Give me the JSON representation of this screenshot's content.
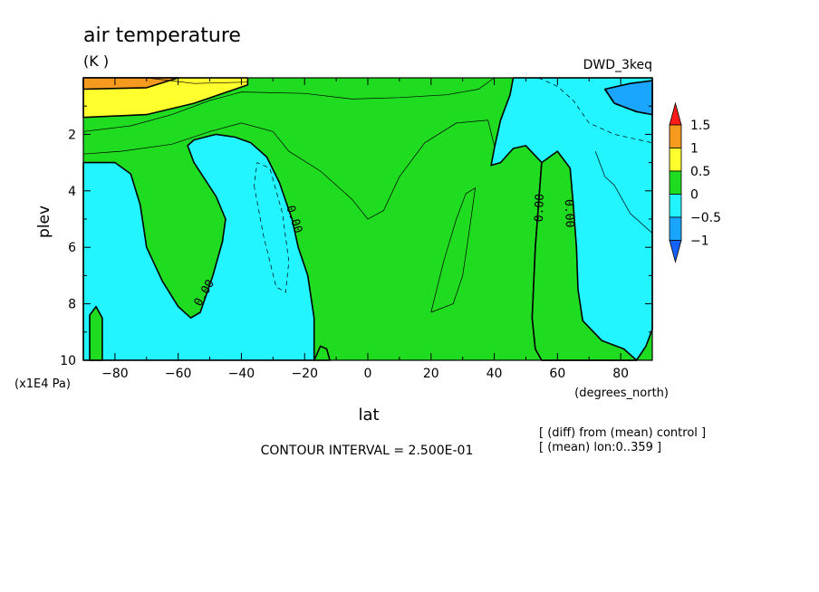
{
  "chart_data": {
    "type": "heatmap",
    "title": "air temperature",
    "units": "(K )",
    "dataset": "DWD_3keq",
    "xlabel": "lat",
    "xunits": "(degrees_north)",
    "ylabel": "plev",
    "yunits": "(x1E4 Pa)",
    "xlim": [
      -90,
      90
    ],
    "ylim": [
      10,
      0
    ],
    "x_ticks": [
      -80,
      -60,
      -40,
      -20,
      0,
      20,
      40,
      60,
      80
    ],
    "y_ticks": [
      2,
      4,
      6,
      8,
      10
    ],
    "contour_interval_text": "CONTOUR INTERVAL = 2.500E-01",
    "notes": [
      "[ (diff) from (mean) control ]",
      "[ (mean) lon:0..359 ]"
    ],
    "contour_label": "0.00",
    "colorbar": {
      "ticks": [
        "1.5",
        "1",
        "0.5",
        "0",
        "-0.5",
        "-1"
      ],
      "bands": [
        {
          "range": "> 1.5",
          "color": "#ff1a1a"
        },
        {
          "range": "1 to 1.5",
          "color": "#f59a1e"
        },
        {
          "range": "0.5 to 1",
          "color": "#ffff2e"
        },
        {
          "range": "0 to 0.5",
          "color": "#20dc20"
        },
        {
          "range": "-0.5 to 0",
          "color": "#22f5ff"
        },
        {
          "range": "-1 to -0.5",
          "color": "#1aa6ff"
        },
        {
          "range": "< -1",
          "color": "#1462ff"
        }
      ]
    },
    "regions": [
      {
        "level": "0.5 to 1",
        "polygon": [
          [
            -90,
            0
          ],
          [
            -38,
            0
          ],
          [
            -38,
            0.25
          ],
          [
            -55,
            0.9
          ],
          [
            -70,
            1.3
          ],
          [
            -90,
            1.4
          ]
        ]
      },
      {
        "level": "1 to 1.5",
        "polygon": [
          [
            -90,
            0
          ],
          [
            -60,
            0
          ],
          [
            -70,
            0.35
          ],
          [
            -90,
            0.4
          ]
        ]
      },
      {
        "level": "-0.5 to 0",
        "polygon": [
          [
            -90,
            3.0
          ],
          [
            -80,
            3.0
          ],
          [
            -75,
            3.4
          ],
          [
            -72,
            4.5
          ],
          [
            -70,
            6.0
          ],
          [
            -65,
            7.2
          ],
          [
            -60,
            8.1
          ],
          [
            -56,
            8.5
          ],
          [
            -53,
            8.3
          ],
          [
            -49,
            7.0
          ],
          [
            -46,
            5.8
          ],
          [
            -45,
            5.0
          ],
          [
            -48,
            4.2
          ],
          [
            -55,
            3.0
          ],
          [
            -57,
            2.4
          ],
          [
            -55,
            2.2
          ],
          [
            -48,
            2.0
          ],
          [
            -42,
            2.1
          ],
          [
            -37,
            2.3
          ],
          [
            -32,
            2.8
          ],
          [
            -28,
            3.7
          ],
          [
            -24,
            5.0
          ],
          [
            -22,
            6.0
          ],
          [
            -19,
            7.0
          ],
          [
            -17,
            8.5
          ],
          [
            -17,
            10
          ],
          [
            -90,
            10
          ]
        ]
      },
      {
        "level": "0 to 0.5",
        "polygon": [
          [
            -88,
            10
          ],
          [
            -88,
            8.4
          ],
          [
            -86,
            8.1
          ],
          [
            -84,
            8.5
          ],
          [
            -84,
            10
          ]
        ]
      },
      {
        "level": "0 to 0.5",
        "polygon": [
          [
            -17,
            10
          ],
          [
            -15,
            9.5
          ],
          [
            -13,
            9.6
          ],
          [
            -12,
            10
          ]
        ]
      },
      {
        "level": "-0.5 to 0",
        "polygon": [
          [
            46,
            0
          ],
          [
            90,
            0
          ],
          [
            90,
            8.9
          ],
          [
            88,
            9.5
          ],
          [
            85,
            10
          ],
          [
            55,
            10
          ],
          [
            53,
            9.6
          ],
          [
            52,
            8.5
          ],
          [
            53,
            6
          ],
          [
            54,
            4.5
          ],
          [
            55,
            3.0
          ],
          [
            50,
            2.4
          ],
          [
            46,
            2.5
          ],
          [
            42,
            3.0
          ],
          [
            39,
            3.1
          ],
          [
            40,
            2.5
          ],
          [
            42,
            1.5
          ],
          [
            45,
            0.6
          ]
        ]
      },
      {
        "level": "0 to 0.5",
        "polygon": [
          [
            55,
            3.0
          ],
          [
            60,
            2.6
          ],
          [
            64,
            3.2
          ],
          [
            65,
            4.5
          ],
          [
            66,
            6.0
          ],
          [
            66.5,
            7.5
          ],
          [
            68,
            8.6
          ],
          [
            74,
            9.3
          ],
          [
            81,
            9.6
          ],
          [
            85,
            10
          ],
          [
            55,
            10
          ],
          [
            53,
            9.6
          ],
          [
            52,
            8.5
          ],
          [
            53,
            6
          ],
          [
            54,
            4.5
          ]
        ]
      },
      {
        "level": "-1 to -0.5",
        "polygon": [
          [
            75,
            0.4
          ],
          [
            83,
            0.2
          ],
          [
            90,
            0.1
          ],
          [
            90,
            1.3
          ],
          [
            85,
            1.2
          ],
          [
            78,
            0.9
          ]
        ]
      }
    ]
  }
}
